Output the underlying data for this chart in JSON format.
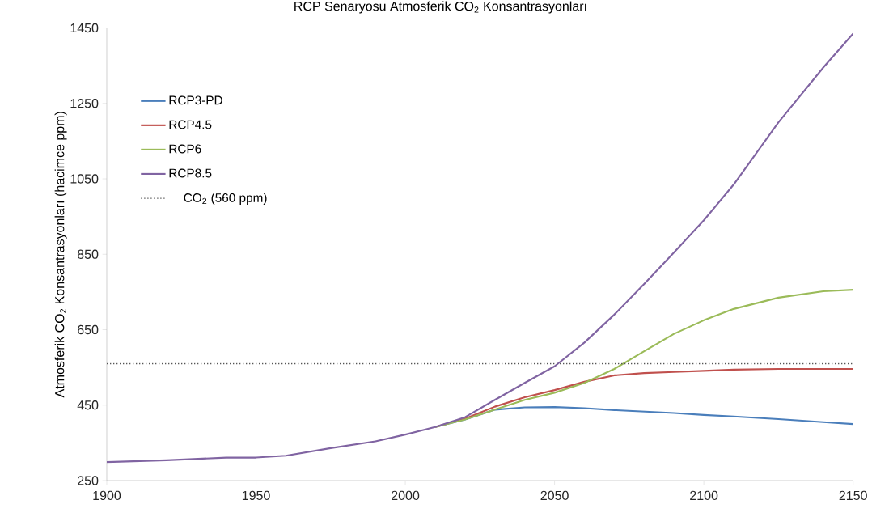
{
  "chart_data": {
    "type": "line",
    "title": "RCP Senaryosu Atmosferik CO$_{2}$ Konsantrasyonları",
    "ylabel": "Atmosferik CO$_{2}$ Konsantrasyonları (hacimce ppm)",
    "x": [
      1900,
      1920,
      1940,
      1950,
      1960,
      1975,
      1990,
      2000,
      2010,
      2020,
      2030,
      2040,
      2050,
      2060,
      2070,
      2080,
      2090,
      2100,
      2110,
      2125,
      2140,
      2150
    ],
    "series": [
      {
        "name": "RCP3-PD",
        "color": "#4a7ebb",
        "values": [
          null,
          null,
          null,
          null,
          null,
          null,
          null,
          null,
          392,
          412,
          438,
          444,
          445,
          442,
          437,
          433,
          429,
          424,
          420,
          413,
          405,
          400
        ]
      },
      {
        "name": "RCP4.5",
        "color": "#c0504d",
        "values": [
          null,
          null,
          null,
          null,
          null,
          null,
          null,
          null,
          392,
          414,
          446,
          471,
          490,
          512,
          529,
          535,
          538,
          541,
          544,
          546,
          546,
          546
        ]
      },
      {
        "name": "RCP6",
        "color": "#9bbb59",
        "values": [
          null,
          null,
          null,
          null,
          null,
          null,
          null,
          null,
          392,
          412,
          438,
          464,
          483,
          509,
          546,
          593,
          639,
          675,
          705,
          735,
          752,
          756
        ]
      },
      {
        "name": "RCP8.5",
        "color": "#8064a2",
        "values": [
          299,
          304,
          311,
          311,
          316,
          336,
          354,
          372,
          392,
          418,
          464,
          509,
          553,
          616,
          690,
          771,
          855,
          940,
          1035,
          1200,
          1345,
          1435
        ]
      }
    ],
    "xlim": [
      1900,
      2150
    ],
    "ylim": [
      250,
      1450
    ],
    "xticks": [
      1900,
      1950,
      2000,
      2050,
      2100,
      2150
    ],
    "yticks": [
      250,
      450,
      650,
      850,
      1050,
      1250,
      1450
    ],
    "ref_lines": [
      {
        "axis": "y",
        "value": 560,
        "label": "CO$_{2}$ (560 ppm)",
        "color": "#555555",
        "line_style": "dotted"
      }
    ],
    "grid": false,
    "legend": "top left",
    "marker": "none",
    "line_style": "solid"
  }
}
